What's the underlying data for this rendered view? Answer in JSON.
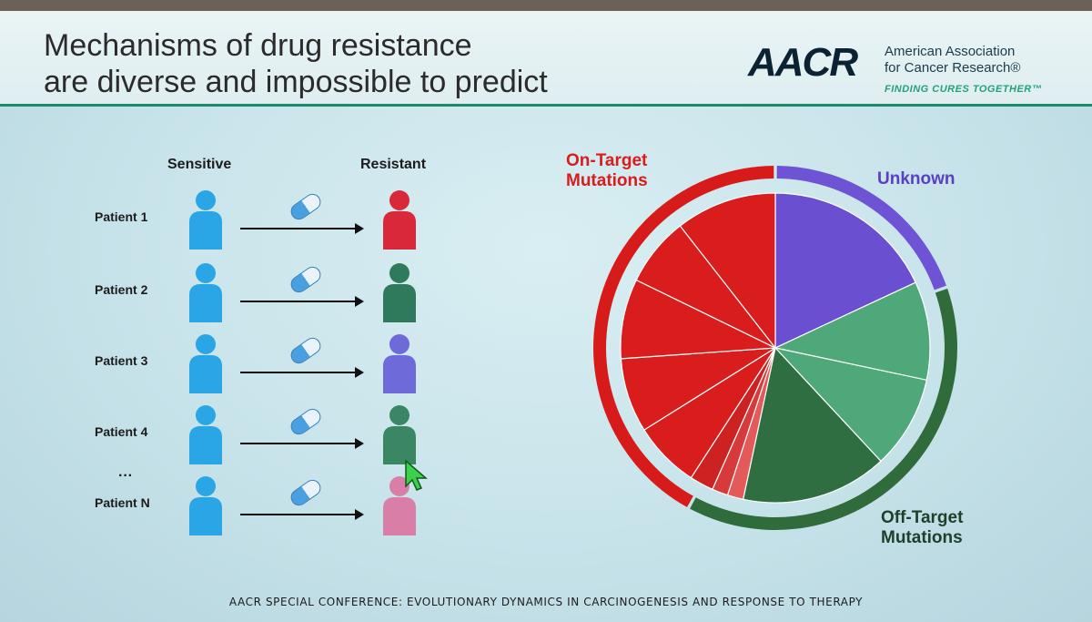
{
  "header": {
    "title_line1": "Mechanisms of drug resistance",
    "title_line2": "are diverse and impossible to predict",
    "logo": {
      "mark": "AACR",
      "name_line1": "American Association",
      "name_line2": "for Cancer Research®",
      "tagline": "FINDING CURES TOGETHER™"
    }
  },
  "diagram": {
    "col_sensitive": "Sensitive",
    "col_resistant": "Resistant",
    "ellipsis": "···",
    "patients": [
      {
        "label": "Patient 1",
        "resistant_color": "#d8283a"
      },
      {
        "label": "Patient 2",
        "resistant_color": "#2f7a5c"
      },
      {
        "label": "Patient 3",
        "resistant_color": "#6f6ad9"
      },
      {
        "label": "Patient 4",
        "resistant_color": "#3b8763"
      },
      {
        "label": "Patient N",
        "resistant_color": "#d97ea6"
      }
    ],
    "sensitive_color": "#2aa6e6"
  },
  "pie": {
    "label_on_target_l1": "On-Target",
    "label_on_target_l2": "Mutations",
    "label_unknown": "Unknown",
    "label_off_target_l1": "Off-Target",
    "label_off_target_l2": "Mutations",
    "colors": {
      "on_target": "#d91d1d",
      "unknown": "#6a4fd0",
      "off_target_light": "#4fa87a",
      "off_target_dark": "#2f6e40",
      "red_outer": "#d71a1a",
      "green_outer": "#2f6b3b",
      "purple_outer": "#6e54d4"
    }
  },
  "footer": {
    "text": "AACR SPECIAL CONFERENCE: EVOLUTIONARY DYNAMICS IN CARCINOGENESIS AND RESPONSE TO THERAPY"
  }
}
